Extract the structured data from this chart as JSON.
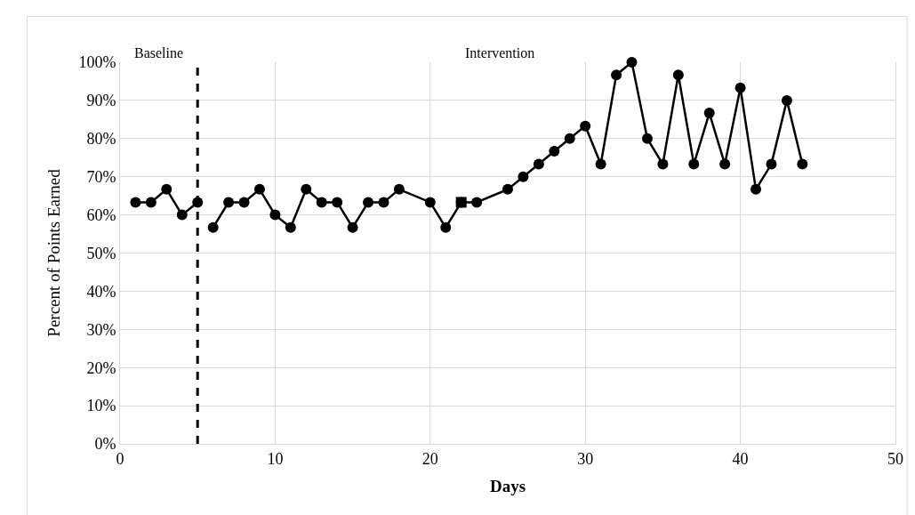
{
  "chart_data": {
    "type": "line",
    "xlabel": "Days",
    "ylabel": "Percent of Points Earned",
    "annotations": [
      "Baseline",
      "Intervention"
    ],
    "series": [
      {
        "color": "#000000",
        "x": [
          1,
          2,
          3,
          4,
          5
        ],
        "values": [
          63.3,
          63.3,
          66.7,
          60,
          63.3
        ]
      },
      {
        "color": "#000000",
        "x": [
          6,
          7,
          8,
          9,
          10,
          11,
          12,
          13,
          14,
          15,
          16,
          17,
          18,
          20,
          21,
          22,
          23,
          25,
          26,
          27,
          28,
          29,
          30,
          31,
          32,
          33,
          34,
          35,
          36,
          37,
          38,
          39,
          40,
          41,
          42,
          43,
          44
        ],
        "values": [
          56.7,
          63.3,
          63.3,
          66.7,
          60,
          56.7,
          66.7,
          63.3,
          63.3,
          56.7,
          63.3,
          63.3,
          66.7,
          63.3,
          56.7,
          63.3,
          63.3,
          66.7,
          70,
          73.3,
          76.7,
          80,
          83.3,
          73.3,
          96.7,
          100,
          80,
          73.3,
          96.7,
          73.3,
          86.7,
          73.3,
          93.3,
          66.7,
          73.3,
          90,
          73.3
        ]
      },
      {
        "type": "scatter",
        "marker": "square",
        "color": "#000000",
        "x": [
          22
        ],
        "values": [
          63.3
        ]
      }
    ],
    "marker": "circle",
    "line_style": "solid",
    "ref_lines": [
      {
        "axis": "x",
        "value": 5,
        "color": "#000000",
        "line_style": "dashed"
      }
    ],
    "xlim": [
      0,
      50
    ],
    "xticks": [
      0,
      10,
      20,
      30,
      40,
      50
    ],
    "ylim": [
      0,
      100
    ],
    "yticks": [
      {
        "value": 0,
        "label": "0%"
      },
      {
        "value": 10,
        "label": "10%"
      },
      {
        "value": 20,
        "label": "20%"
      },
      {
        "value": 30,
        "label": "30%"
      },
      {
        "value": 40,
        "label": "40%"
      },
      {
        "value": 50,
        "label": "50%"
      },
      {
        "value": 60,
        "label": "60%"
      },
      {
        "value": 70,
        "label": "70%"
      },
      {
        "value": 80,
        "label": "80%"
      },
      {
        "value": 90,
        "label": "90%"
      },
      {
        "value": 100,
        "label": "100%"
      }
    ],
    "grid": true
  }
}
